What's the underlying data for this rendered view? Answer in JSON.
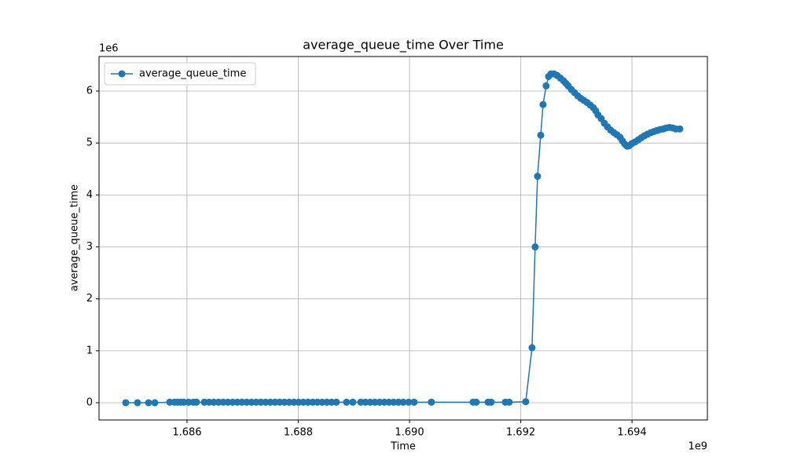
{
  "chart_data": {
    "type": "line",
    "title": "average_queue_time Over Time",
    "x_label": "Time",
    "y_label": "average_queue_time",
    "x_offset_label": "1e9",
    "y_offset_label": "1e6",
    "x": [
      1.684898,
      1.68511,
      1.685308,
      1.685421,
      1.685689,
      1.685774,
      1.68583,
      1.685887,
      1.685943,
      1.686028,
      1.686113,
      1.68617,
      1.686311,
      1.686396,
      1.68648,
      1.686565,
      1.68665,
      1.686735,
      1.68682,
      1.686904,
      1.686989,
      1.687074,
      1.687159,
      1.687243,
      1.687328,
      1.687413,
      1.687498,
      1.687583,
      1.687667,
      1.687752,
      1.687837,
      1.687922,
      1.688006,
      1.688091,
      1.688176,
      1.688261,
      1.688346,
      1.68843,
      1.688515,
      1.6886,
      1.688685,
      1.688868,
      1.688981,
      1.689123,
      1.689208,
      1.689292,
      1.689377,
      1.689462,
      1.689547,
      1.689631,
      1.689716,
      1.689801,
      1.689886,
      1.689985,
      1.690084,
      1.690394,
      1.691143,
      1.6912,
      1.691412,
      1.691468,
      1.691723,
      1.691793,
      1.69209,
      1.692203,
      1.692259,
      1.692302,
      1.692359,
      1.692401,
      1.692457,
      1.6925,
      1.692542,
      1.692599,
      1.692655,
      1.692712,
      1.692768,
      1.692811,
      1.692853,
      1.69291,
      1.692966,
      1.693023,
      1.693079,
      1.693136,
      1.693192,
      1.693249,
      1.693305,
      1.693348,
      1.69339,
      1.693447,
      1.693503,
      1.69356,
      1.693616,
      1.693673,
      1.693729,
      1.693786,
      1.693828,
      1.69387,
      1.693913,
      1.693955,
      1.693998,
      1.694054,
      1.694111,
      1.694167,
      1.694224,
      1.69428,
      1.694337,
      1.694393,
      1.69445,
      1.694506,
      1.694563,
      1.694619,
      1.694676,
      1.694732,
      1.694789,
      1.69486
    ],
    "series": [
      {
        "name": "average_queue_time",
        "color": "#1f77b4",
        "values": [
          0.0,
          0.0,
          0.0,
          0.0,
          0.01,
          0.01,
          0.01,
          0.01,
          0.01,
          0.01,
          0.01,
          0.01,
          0.01,
          0.01,
          0.01,
          0.01,
          0.01,
          0.01,
          0.01,
          0.01,
          0.01,
          0.01,
          0.01,
          0.01,
          0.01,
          0.01,
          0.01,
          0.01,
          0.01,
          0.01,
          0.01,
          0.01,
          0.01,
          0.01,
          0.01,
          0.01,
          0.01,
          0.01,
          0.01,
          0.01,
          0.01,
          0.01,
          0.01,
          0.01,
          0.01,
          0.01,
          0.01,
          0.01,
          0.01,
          0.01,
          0.01,
          0.01,
          0.01,
          0.01,
          0.01,
          0.01,
          0.01,
          0.01,
          0.01,
          0.01,
          0.01,
          0.01,
          0.02,
          1.06,
          3.0,
          4.36,
          5.15,
          5.74,
          6.1,
          6.28,
          6.33,
          6.33,
          6.3,
          6.25,
          6.2,
          6.15,
          6.1,
          6.03,
          5.97,
          5.91,
          5.86,
          5.82,
          5.78,
          5.73,
          5.68,
          5.62,
          5.54,
          5.47,
          5.38,
          5.31,
          5.25,
          5.2,
          5.16,
          5.11,
          5.04,
          4.98,
          4.94,
          4.95,
          4.99,
          5.02,
          5.06,
          5.1,
          5.14,
          5.17,
          5.2,
          5.22,
          5.24,
          5.26,
          5.27,
          5.29,
          5.3,
          5.29,
          5.27,
          5.27
        ]
      }
    ],
    "xlim": [
      1.684418,
      1.695356
    ],
    "ylim": [
      -0.332,
      6.665
    ],
    "xticks": [
      1.686,
      1.688,
      {
        "value": 1.69,
        "label": "1.690"
      },
      1.692,
      1.694
    ],
    "yticks": [
      0,
      1,
      2,
      3,
      4,
      5,
      6
    ],
    "grid": true,
    "legend": "upper-left"
  }
}
